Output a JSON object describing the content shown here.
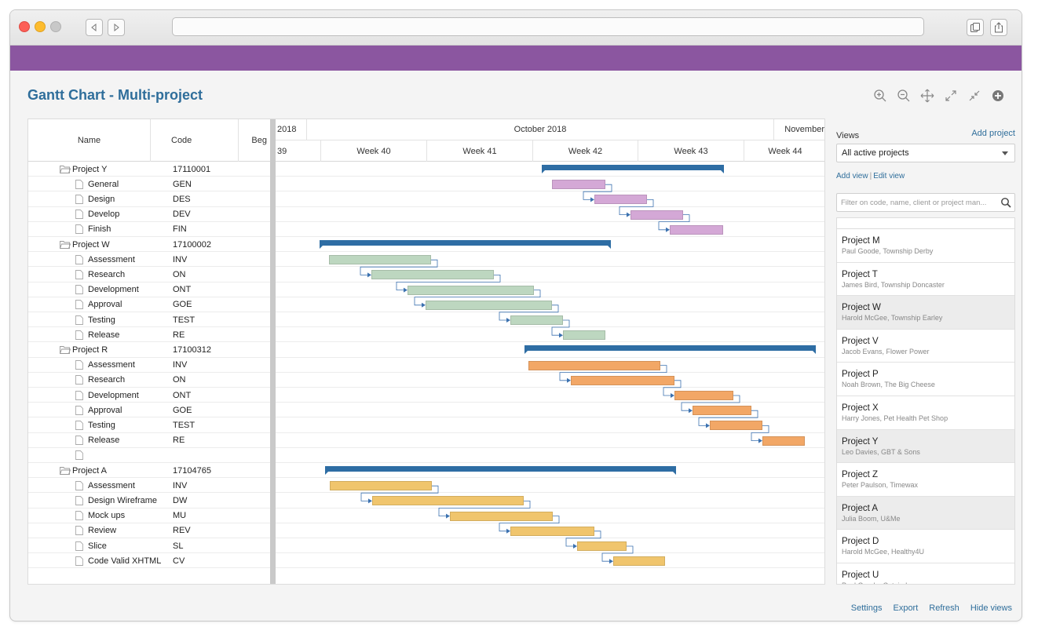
{
  "title": "Gantt Chart - Multi-project",
  "grid": {
    "headers": {
      "name": "Name",
      "code": "Code",
      "begin": "Beg"
    },
    "rows": [
      {
        "name": "Project Y",
        "code": "17110001",
        "type": "project"
      },
      {
        "name": "General",
        "code": "GEN",
        "type": "task"
      },
      {
        "name": "Design",
        "code": "DES",
        "type": "task"
      },
      {
        "name": "Develop",
        "code": "DEV",
        "type": "task"
      },
      {
        "name": "Finish",
        "code": "FIN",
        "type": "task"
      },
      {
        "name": "Project W",
        "code": "17100002",
        "type": "project"
      },
      {
        "name": "Assessment",
        "code": "INV",
        "type": "task"
      },
      {
        "name": "Research",
        "code": "ON",
        "type": "task"
      },
      {
        "name": "Development",
        "code": "ONT",
        "type": "task"
      },
      {
        "name": "Approval",
        "code": "GOE",
        "type": "task"
      },
      {
        "name": "Testing",
        "code": "TEST",
        "type": "task"
      },
      {
        "name": "Release",
        "code": "RE",
        "type": "task"
      },
      {
        "name": "Project R",
        "code": "17100312",
        "type": "project"
      },
      {
        "name": "Assessment",
        "code": "INV",
        "type": "task"
      },
      {
        "name": "Research",
        "code": "ON",
        "type": "task"
      },
      {
        "name": "Development",
        "code": "ONT",
        "type": "task"
      },
      {
        "name": "Approval",
        "code": "GOE",
        "type": "task"
      },
      {
        "name": "Testing",
        "code": "TEST",
        "type": "task"
      },
      {
        "name": "Release",
        "code": "RE",
        "type": "task"
      },
      {
        "name": "",
        "code": "",
        "type": "task"
      },
      {
        "name": "Project A",
        "code": "17104765",
        "type": "project"
      },
      {
        "name": "Assessment",
        "code": "INV",
        "type": "task"
      },
      {
        "name": "Design Wireframe",
        "code": "DW",
        "type": "task"
      },
      {
        "name": "Mock ups",
        "code": "MU",
        "type": "task"
      },
      {
        "name": "Review",
        "code": "REV",
        "type": "task"
      },
      {
        "name": "Slice",
        "code": "SL",
        "type": "task"
      },
      {
        "name": "Code Valid XHTML",
        "code": "CV",
        "type": "task"
      }
    ]
  },
  "timeline": {
    "months": [
      "2018",
      "October 2018",
      "November"
    ],
    "weeks": [
      "39",
      "Week 40",
      "Week 41",
      "Week 42",
      "Week 43",
      "Week 44"
    ]
  },
  "colors": {
    "brand": "#8b56a0",
    "title": "#2f6e9b",
    "summary": "#2e6da4",
    "project_y": "#d4a8d6",
    "project_w": "#bdd7c0",
    "project_r": "#f2a766",
    "project_a": "#f0c56d"
  },
  "views": {
    "label": "Views",
    "add_project": "Add project",
    "selected": "All active projects",
    "add_view": "Add view",
    "edit_view": "Edit view",
    "filter_placeholder": "Filter on code, name, client or project man...",
    "projects": [
      {
        "name": "Project M",
        "meta": "Paul Goode, Township Derby",
        "selected": false
      },
      {
        "name": "Project T",
        "meta": "James Bird, Township Doncaster",
        "selected": false
      },
      {
        "name": "Project W",
        "meta": "Harold McGee, Township Earley",
        "selected": true
      },
      {
        "name": "Project V",
        "meta": "Jacob Evans, Flower Power",
        "selected": false
      },
      {
        "name": "Project P",
        "meta": "Noah Brown, The Big Cheese",
        "selected": false
      },
      {
        "name": "Project X",
        "meta": "Harry Jones, Pet Health Pet Shop",
        "selected": false
      },
      {
        "name": "Project Y",
        "meta": "Leo Davies, GBT & Sons",
        "selected": true
      },
      {
        "name": "Project Z",
        "meta": "Peter Paulson, Timewax",
        "selected": false
      },
      {
        "name": "Project A",
        "meta": "Julia Boom, U&Me",
        "selected": true
      },
      {
        "name": "Project D",
        "meta": "Harold McGee, Healthy4U",
        "selected": false
      },
      {
        "name": "Project U",
        "meta": "Paul Goode, Catnip Inc.",
        "selected": false
      }
    ]
  },
  "footer": {
    "settings": "Settings",
    "export": "Export",
    "refresh": "Refresh",
    "hide_views": "Hide views"
  },
  "icons": [
    "back-icon",
    "forward-icon",
    "tabs-icon",
    "share-icon",
    "zoom-in-icon",
    "zoom-out-icon",
    "move-icon",
    "expand-icon",
    "collapse-icon",
    "add-icon",
    "folder-icon",
    "file-icon",
    "search-icon",
    "chevron-down-icon"
  ]
}
